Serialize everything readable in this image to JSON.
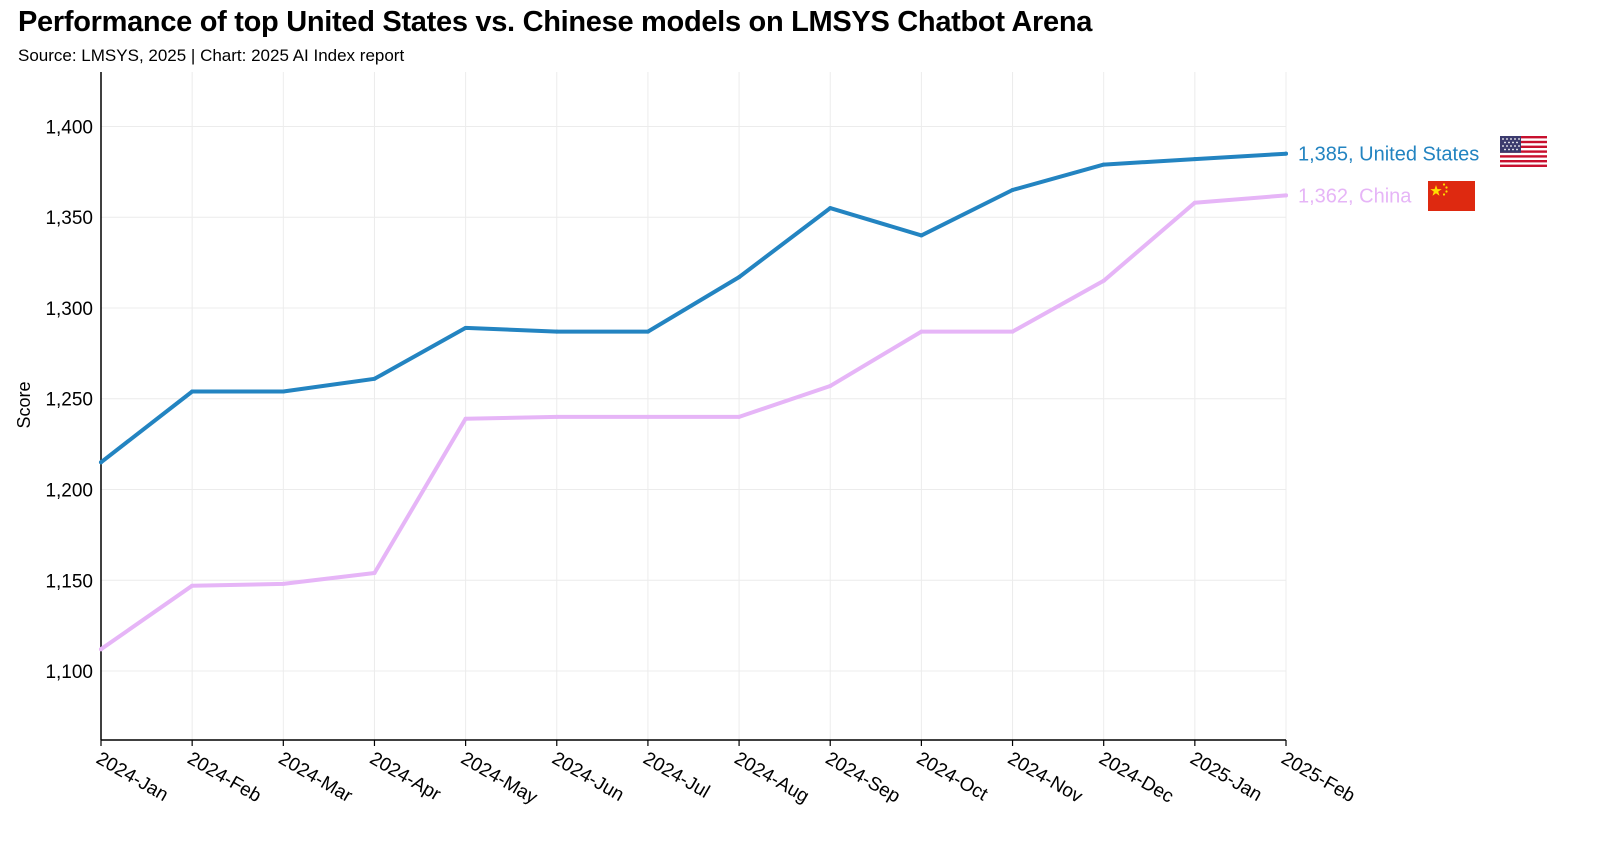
{
  "title": "Performance of top United States vs. Chinese models on LMSYS Chatbot Arena",
  "subtitle": "Source: LMSYS, 2025 | Chart: 2025 AI Index report",
  "chart_data": {
    "type": "line",
    "title": "Performance of top United States vs. Chinese models on LMSYS Chatbot Arena",
    "subtitle": "Source: LMSYS, 2025 | Chart: 2025 AI Index report",
    "xlabel": "",
    "ylabel": "Score",
    "ylim": [
      1062,
      1430
    ],
    "yticks": [
      1100,
      1150,
      1200,
      1250,
      1300,
      1350,
      1400
    ],
    "ytick_labels": [
      "1,100",
      "1,150",
      "1,200",
      "1,250",
      "1,300",
      "1,350",
      "1,400"
    ],
    "grid": true,
    "legend": "end-of-line labels with flag icons",
    "x": [
      "2024-Jan",
      "2024-Feb",
      "2024-Mar",
      "2024-Apr",
      "2024-May",
      "2024-Jun",
      "2024-Jul",
      "2024-Aug",
      "2024-Sep",
      "2024-Oct",
      "2024-Nov",
      "2024-Dec",
      "2025-Jan",
      "2025-Feb"
    ],
    "series": [
      {
        "name": "United States",
        "color": "#2384c1",
        "end_label": "1,385, United States",
        "flag_icon": "us-flag-icon",
        "values": [
          1215,
          1254,
          1254,
          1261,
          1289,
          1287,
          1287,
          1317,
          1355,
          1340,
          1365,
          1379,
          1382,
          1385
        ]
      },
      {
        "name": "China",
        "color": "#e6b5f7",
        "end_label": "1,362, China",
        "flag_icon": "china-flag-icon",
        "values": [
          1112,
          1147,
          1148,
          1154,
          1239,
          1240,
          1240,
          1240,
          1257,
          1287,
          1287,
          1315,
          1358,
          1362
        ]
      }
    ]
  }
}
